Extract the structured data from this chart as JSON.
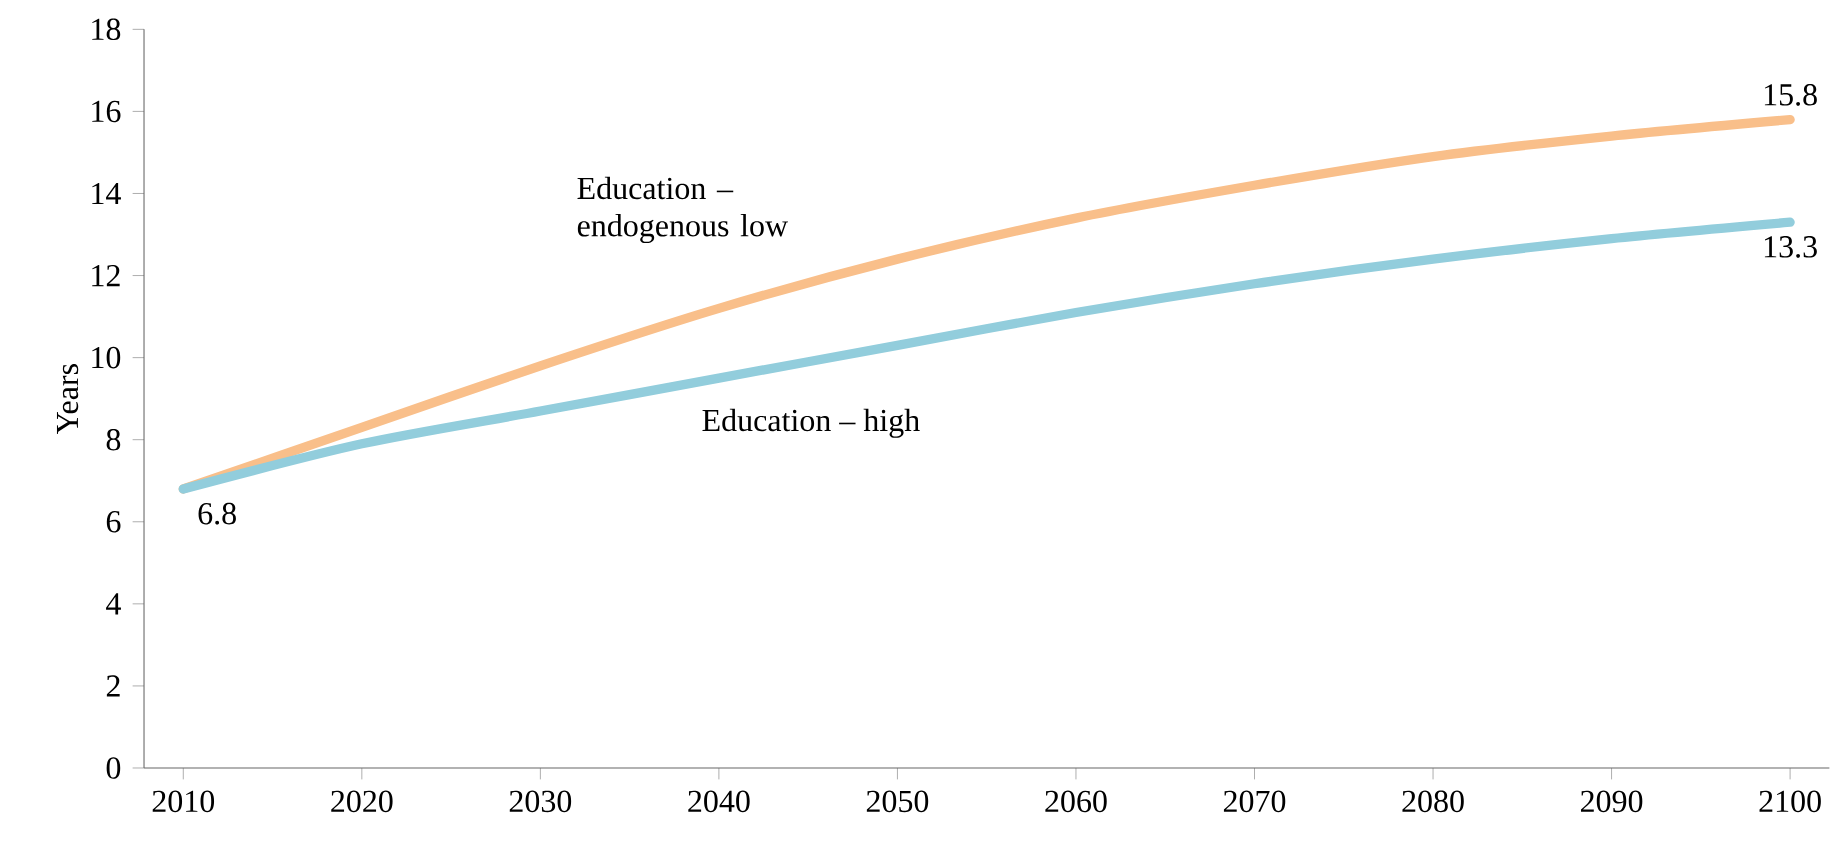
{
  "chart_data": {
    "type": "line",
    "ylabel": "Years",
    "x": [
      2010,
      2020,
      2030,
      2040,
      2050,
      2060,
      2070,
      2080,
      2090,
      2100
    ],
    "series": [
      {
        "name": "Education – endogenous low",
        "color": "#f9bf8a",
        "values": [
          6.8,
          8.3,
          9.8,
          11.2,
          12.4,
          13.4,
          14.2,
          14.9,
          15.4,
          15.8
        ],
        "value_labels": [
          null,
          null,
          null,
          null,
          null,
          null,
          null,
          null,
          null,
          "15.8"
        ]
      },
      {
        "name": "Education – high",
        "color": "#92cddc",
        "values": [
          6.8,
          7.9,
          8.7,
          9.5,
          10.3,
          11.1,
          11.8,
          12.4,
          12.9,
          13.3
        ],
        "value_labels": [
          "6.8",
          null,
          null,
          null,
          null,
          null,
          null,
          null,
          null,
          "13.3"
        ]
      }
    ],
    "xlim": [
      2007.8,
      2102.2
    ],
    "ylim": [
      0,
      18
    ],
    "xticks": [
      2010,
      2020,
      2030,
      2040,
      2050,
      2060,
      2070,
      2080,
      2090,
      2100
    ],
    "yticks": [
      0,
      2,
      4,
      6,
      8,
      10,
      12,
      14,
      16,
      18
    ],
    "grid": false,
    "marker": "none",
    "line_style": "solid"
  }
}
